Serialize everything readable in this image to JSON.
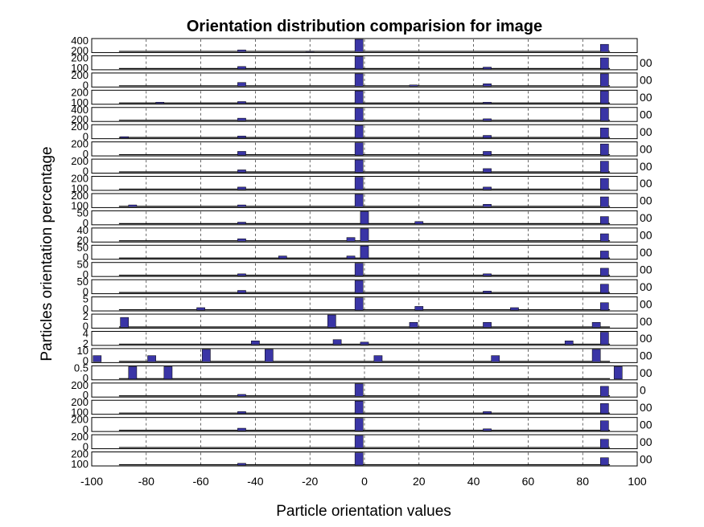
{
  "chart_data": {
    "type": "bar",
    "title": "Orientation distribution comparision for image",
    "xlabel": "Particle orientation values",
    "ylabel": "Particles orientation percentage",
    "xlim": [
      -100,
      100
    ],
    "xticks": [
      "-100",
      "-80",
      "-60",
      "-40",
      "-20",
      "0",
      "20",
      "40",
      "60",
      "80",
      "100"
    ],
    "grid": true,
    "colors": {
      "bar": "#3a35a6",
      "bar_edge": "#000000",
      "grid": "#000000",
      "axes": "#000000"
    },
    "panels": [
      {
        "yticks": [
          "400",
          "200"
        ],
        "rtick": "",
        "bars": [
          [
            -45,
            0.15
          ],
          [
            -20,
            0.05
          ],
          [
            -2,
            1.0
          ],
          [
            88,
            0.6
          ]
        ]
      },
      {
        "yticks": [
          "200",
          "100"
        ],
        "rtick": "00",
        "bars": [
          [
            -45,
            0.2
          ],
          [
            -2,
            1.0
          ],
          [
            45,
            0.15
          ],
          [
            88,
            0.9
          ]
        ]
      },
      {
        "yticks": [
          "200",
          "0"
        ],
        "rtick": "00",
        "bars": [
          [
            -45,
            0.3
          ],
          [
            -2,
            1.0
          ],
          [
            18,
            0.1
          ],
          [
            45,
            0.2
          ],
          [
            88,
            1.0
          ]
        ]
      },
      {
        "yticks": [
          "200",
          "100"
        ],
        "rtick": "00",
        "bars": [
          [
            -75,
            0.1
          ],
          [
            -45,
            0.15
          ],
          [
            -2,
            1.0
          ],
          [
            45,
            0.1
          ],
          [
            88,
            1.0
          ]
        ]
      },
      {
        "yticks": [
          "400",
          "200"
        ],
        "rtick": "00",
        "bars": [
          [
            -45,
            0.2
          ],
          [
            -2,
            1.0
          ],
          [
            45,
            0.15
          ],
          [
            88,
            1.0
          ]
        ]
      },
      {
        "yticks": [
          "200",
          "0"
        ],
        "rtick": "00",
        "bars": [
          [
            -88,
            0.1
          ],
          [
            -45,
            0.15
          ],
          [
            -2,
            1.0
          ],
          [
            45,
            0.2
          ],
          [
            88,
            0.8
          ]
        ]
      },
      {
        "yticks": [
          "200",
          "0"
        ],
        "rtick": "00",
        "bars": [
          [
            -45,
            0.3
          ],
          [
            -2,
            1.0
          ],
          [
            45,
            0.3
          ],
          [
            88,
            0.9
          ]
        ]
      },
      {
        "yticks": [
          "200",
          "0"
        ],
        "rtick": "00",
        "bars": [
          [
            -45,
            0.2
          ],
          [
            -2,
            1.0
          ],
          [
            45,
            0.3
          ],
          [
            88,
            0.9
          ]
        ]
      },
      {
        "yticks": [
          "200",
          "100"
        ],
        "rtick": "00",
        "bars": [
          [
            -45,
            0.2
          ],
          [
            -2,
            1.0
          ],
          [
            45,
            0.2
          ],
          [
            88,
            0.9
          ]
        ]
      },
      {
        "yticks": [
          "200",
          "100"
        ],
        "rtick": "00",
        "bars": [
          [
            -85,
            0.15
          ],
          [
            -45,
            0.15
          ],
          [
            -2,
            1.0
          ],
          [
            45,
            0.2
          ],
          [
            88,
            0.8
          ]
        ]
      },
      {
        "yticks": [
          "50",
          "0"
        ],
        "rtick": "00",
        "bars": [
          [
            -45,
            0.15
          ],
          [
            0,
            1.0
          ],
          [
            20,
            0.2
          ],
          [
            88,
            0.6
          ]
        ]
      },
      {
        "yticks": [
          "40",
          "20"
        ],
        "rtick": "00",
        "bars": [
          [
            -45,
            0.2
          ],
          [
            -5,
            0.3
          ],
          [
            0,
            1.0
          ],
          [
            88,
            0.6
          ]
        ]
      },
      {
        "yticks": [
          "50",
          "0"
        ],
        "rtick": "00",
        "bars": [
          [
            -30,
            0.2
          ],
          [
            -5,
            0.2
          ],
          [
            0,
            1.0
          ],
          [
            88,
            0.6
          ]
        ]
      },
      {
        "yticks": [
          "50",
          "0"
        ],
        "rtick": "00",
        "bars": [
          [
            -45,
            0.15
          ],
          [
            -2,
            1.0
          ],
          [
            45,
            0.15
          ],
          [
            88,
            0.6
          ]
        ]
      },
      {
        "yticks": [
          "50",
          "0"
        ],
        "rtick": "00",
        "bars": [
          [
            -45,
            0.2
          ],
          [
            -2,
            1.0
          ],
          [
            45,
            0.15
          ],
          [
            88,
            0.7
          ]
        ]
      },
      {
        "yticks": [
          "5",
          "0"
        ],
        "rtick": "00",
        "bars": [
          [
            -60,
            0.2
          ],
          [
            -2,
            1.0
          ],
          [
            20,
            0.3
          ],
          [
            55,
            0.2
          ],
          [
            88,
            0.6
          ]
        ]
      },
      {
        "yticks": [
          "2",
          "0"
        ],
        "rtick": "00",
        "bars": [
          [
            -88,
            0.8
          ],
          [
            -12,
            1.0
          ],
          [
            18,
            0.4
          ],
          [
            45,
            0.4
          ],
          [
            85,
            0.4
          ]
        ]
      },
      {
        "yticks": [
          "4",
          "2"
        ],
        "rtick": "00",
        "bars": [
          [
            -40,
            0.3
          ],
          [
            -10,
            0.4
          ],
          [
            0,
            0.2
          ],
          [
            75,
            0.3
          ],
          [
            88,
            1.0
          ]
        ]
      },
      {
        "yticks": [
          "10",
          "0"
        ],
        "rtick": "00",
        "bars": [
          [
            -98,
            0.5
          ],
          [
            -78,
            0.5
          ],
          [
            -58,
            1.0
          ],
          [
            -35,
            1.0
          ],
          [
            5,
            0.5
          ],
          [
            48,
            0.5
          ],
          [
            85,
            1.0
          ]
        ]
      },
      {
        "yticks": [
          "0.5",
          "0"
        ],
        "rtick": "00",
        "bars": [
          [
            -85,
            1.0
          ],
          [
            -72,
            1.0
          ],
          [
            93,
            1.0
          ]
        ]
      },
      {
        "yticks": [
          "200",
          "0"
        ],
        "rtick": "0",
        "bars": [
          [
            -45,
            0.15
          ],
          [
            -2,
            1.0
          ],
          [
            88,
            0.8
          ]
        ]
      },
      {
        "yticks": [
          "200",
          "100"
        ],
        "rtick": "00",
        "bars": [
          [
            -45,
            0.15
          ],
          [
            -2,
            1.0
          ],
          [
            45,
            0.15
          ],
          [
            88,
            0.8
          ]
        ]
      },
      {
        "yticks": [
          "200",
          "0"
        ],
        "rtick": "00",
        "bars": [
          [
            -45,
            0.2
          ],
          [
            -2,
            1.0
          ],
          [
            45,
            0.15
          ],
          [
            88,
            0.8
          ]
        ]
      },
      {
        "yticks": [
          "200",
          "0"
        ],
        "rtick": "00",
        "bars": [
          [
            -2,
            1.0
          ],
          [
            88,
            0.7
          ]
        ]
      },
      {
        "yticks": [
          "200",
          "100"
        ],
        "rtick": "00",
        "bars": [
          [
            -45,
            0.15
          ],
          [
            -2,
            1.0
          ],
          [
            88,
            0.6
          ]
        ]
      }
    ]
  }
}
